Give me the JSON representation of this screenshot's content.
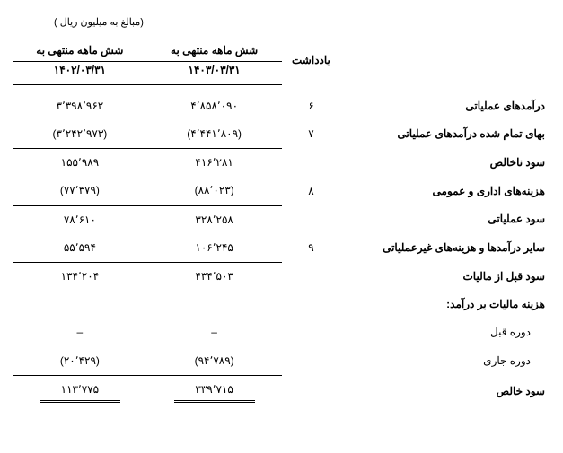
{
  "unit_note": "(مبالغ به میلیون ریال )",
  "headers": {
    "note": "یادداشت",
    "period_label": "شش ماهه منتهی به",
    "current_date": "۱۴۰۳/۰۳/۳۱",
    "prev_date": "۱۴۰۲/۰۳/۳۱"
  },
  "rows": [
    {
      "label": "درآمدهای عملیاتی",
      "note": "۶",
      "cur": "۴٬۸۵۸٬۰۹۰",
      "prev": "۳٬۳۹۸٬۹۶۲"
    },
    {
      "label": "بهای تمام شده درآمدهای عملیاتی",
      "note": "۷",
      "cur": "(۴٬۴۴۱٬۸۰۹)",
      "prev": "(۳٬۲۴۲٬۹۷۳)"
    },
    {
      "label": "سود ناخالص",
      "note": "",
      "cur": "۴۱۶٬۲۸۱",
      "prev": "۱۵۵٬۹۸۹",
      "btop": true
    },
    {
      "label": "هزینه‌های اداری و عمومی",
      "note": "۸",
      "cur": "(۸۸٬۰۲۳)",
      "prev": "(۷۷٬۳۷۹)"
    },
    {
      "label": "سود عملیاتی",
      "note": "",
      "cur": "۳۲۸٬۲۵۸",
      "prev": "۷۸٬۶۱۰",
      "btop": true
    },
    {
      "label": "سایر درآمدها و هزینه‌های غیرعملیاتی",
      "note": "۹",
      "cur": "۱۰۶٬۲۴۵",
      "prev": "۵۵٬۵۹۴"
    },
    {
      "label": "سود قبل از مالیات",
      "note": "",
      "cur": "۴۳۴٬۵۰۳",
      "prev": "۱۳۴٬۲۰۴",
      "btop": true
    },
    {
      "label": "هزینه مالیات بر درآمد:",
      "note": "",
      "cur": "",
      "prev": ""
    },
    {
      "label": "دوره قبل",
      "note": "",
      "cur": "–",
      "prev": "–",
      "indent": true
    },
    {
      "label": "دوره جاری",
      "note": "",
      "cur": "(۹۴٬۷۸۹)",
      "prev": "(۲۰٬۴۲۹)",
      "indent": true
    },
    {
      "label": "سود خالص",
      "note": "",
      "cur": "۳۳۹٬۷۱۵",
      "prev": "۱۱۳٬۷۷۵",
      "btop": true,
      "dbl": true
    }
  ]
}
